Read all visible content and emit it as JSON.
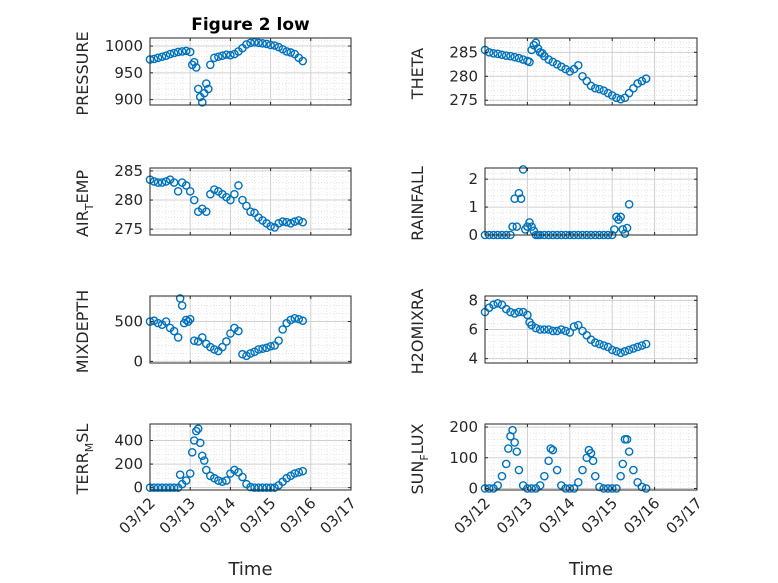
{
  "figure": {
    "title": "Figure 2 low"
  },
  "colors": {
    "marker": "#0072BD",
    "axis": "#262626",
    "grid": "#d0d0d0"
  },
  "chart_data": [
    {
      "type": "scatter",
      "title": "Figure 2 low",
      "ylabel": "PRESSURE",
      "ylim": [
        890,
        1015
      ],
      "yticks": [
        900,
        950,
        1000
      ],
      "ytick_labels": [
        "900",
        "950",
        "1000"
      ],
      "xlim": [
        0,
        5
      ],
      "grid": true,
      "x": [
        0.0,
        0.1,
        0.2,
        0.3,
        0.4,
        0.5,
        0.6,
        0.7,
        0.8,
        0.9,
        1.0,
        1.05,
        1.1,
        1.15,
        1.2,
        1.25,
        1.3,
        1.35,
        1.4,
        1.45,
        1.5,
        1.6,
        1.7,
        1.8,
        1.9,
        2.0,
        2.1,
        2.2,
        2.3,
        2.4,
        2.5,
        2.6,
        2.7,
        2.8,
        2.9,
        3.0,
        3.1,
        3.2,
        3.3,
        3.4,
        3.5,
        3.6,
        3.7,
        3.8
      ],
      "y": [
        975,
        976,
        978,
        980,
        982,
        985,
        987,
        989,
        990,
        991,
        989,
        965,
        970,
        960,
        920,
        905,
        895,
        912,
        930,
        920,
        965,
        978,
        980,
        982,
        984,
        983,
        985,
        990,
        996,
        1003,
        1006,
        1007,
        1006,
        1005,
        1004,
        1002,
        1001,
        998,
        994,
        990,
        988,
        985,
        978,
        972
      ]
    },
    {
      "type": "scatter",
      "ylabel": "THETA",
      "ylim": [
        274,
        288
      ],
      "yticks": [
        275,
        280,
        285
      ],
      "ytick_labels": [
        "275",
        "280",
        "285"
      ],
      "xlim": [
        0,
        5
      ],
      "grid": true,
      "x": [
        0.0,
        0.1,
        0.2,
        0.3,
        0.4,
        0.5,
        0.6,
        0.7,
        0.8,
        0.9,
        1.0,
        1.05,
        1.1,
        1.15,
        1.2,
        1.25,
        1.3,
        1.35,
        1.4,
        1.5,
        1.6,
        1.7,
        1.8,
        1.9,
        2.0,
        2.1,
        2.2,
        2.3,
        2.4,
        2.5,
        2.6,
        2.7,
        2.8,
        2.9,
        3.0,
        3.1,
        3.2,
        3.3,
        3.4,
        3.5,
        3.6,
        3.7,
        3.8
      ],
      "y": [
        285.5,
        285.0,
        284.8,
        284.7,
        284.5,
        284.3,
        284.2,
        284.0,
        283.8,
        283.5,
        283.2,
        283.0,
        285.5,
        286.5,
        287.0,
        285.8,
        285.0,
        284.8,
        284.2,
        283.5,
        283.0,
        282.5,
        282.0,
        281.5,
        281.0,
        281.5,
        282.3,
        280.0,
        279.0,
        278.0,
        277.5,
        277.3,
        277.0,
        276.5,
        276.0,
        275.5,
        275.2,
        275.5,
        276.5,
        277.5,
        278.5,
        279.0,
        279.5
      ]
    },
    {
      "type": "scatter",
      "ylabel": "AIR_TEMP",
      "ylim": [
        274,
        285.5
      ],
      "yticks": [
        275,
        280,
        285
      ],
      "ytick_labels": [
        "275",
        "280",
        "285"
      ],
      "xlim": [
        0,
        5
      ],
      "grid": true,
      "x": [
        0.0,
        0.1,
        0.2,
        0.3,
        0.4,
        0.5,
        0.6,
        0.7,
        0.8,
        0.9,
        1.0,
        1.1,
        1.2,
        1.3,
        1.4,
        1.5,
        1.6,
        1.7,
        1.8,
        1.9,
        2.0,
        2.1,
        2.2,
        2.3,
        2.4,
        2.5,
        2.6,
        2.7,
        2.8,
        2.9,
        3.0,
        3.1,
        3.2,
        3.3,
        3.4,
        3.5,
        3.6,
        3.7,
        3.8
      ],
      "y": [
        283.5,
        283.2,
        283.0,
        283.0,
        283.2,
        283.5,
        283.0,
        281.5,
        283.0,
        282.5,
        281.5,
        280.0,
        278.0,
        278.5,
        278.0,
        281.0,
        281.8,
        281.5,
        281.0,
        280.5,
        280.0,
        281.0,
        282.5,
        280.0,
        279.0,
        278.0,
        277.8,
        277.0,
        276.5,
        276.0,
        275.5,
        275.3,
        276.0,
        276.3,
        276.2,
        276.0,
        276.3,
        276.5,
        276.2
      ]
    },
    {
      "type": "scatter",
      "ylabel": "RAINFALL",
      "ylim": [
        0,
        2.4
      ],
      "yticks": [
        0,
        1,
        2
      ],
      "ytick_labels": [
        "0",
        "1",
        "2"
      ],
      "xlim": [
        0,
        5
      ],
      "grid": true,
      "x": [
        0.0,
        0.1,
        0.2,
        0.3,
        0.4,
        0.5,
        0.6,
        0.65,
        0.7,
        0.75,
        0.8,
        0.85,
        0.9,
        0.95,
        1.0,
        1.05,
        1.1,
        1.15,
        1.2,
        1.25,
        1.3,
        1.4,
        1.5,
        1.6,
        1.7,
        1.8,
        1.9,
        2.0,
        2.1,
        2.2,
        2.3,
        2.4,
        2.5,
        2.6,
        2.7,
        2.8,
        2.9,
        3.0,
        3.05,
        3.1,
        3.15,
        3.2,
        3.25,
        3.3,
        3.35,
        3.4
      ],
      "y": [
        0,
        0,
        0,
        0,
        0,
        0,
        0,
        0.3,
        1.3,
        0.3,
        1.5,
        1.3,
        2.35,
        0.2,
        0.3,
        0.45,
        0.3,
        0.15,
        0,
        0,
        0,
        0,
        0,
        0,
        0,
        0,
        0,
        0,
        0,
        0,
        0,
        0,
        0,
        0,
        0,
        0,
        0,
        0,
        0.2,
        0.65,
        0.55,
        0.65,
        0.2,
        0.05,
        0.25,
        1.1
      ]
    },
    {
      "type": "scatter",
      "ylabel": "MIXDEPTH",
      "ylim": [
        -20,
        820
      ],
      "yticks": [
        0,
        500
      ],
      "ytick_labels": [
        "0",
        "500"
      ],
      "xlim": [
        0,
        5
      ],
      "grid": true,
      "x": [
        0.0,
        0.1,
        0.2,
        0.3,
        0.4,
        0.5,
        0.6,
        0.7,
        0.75,
        0.8,
        0.85,
        0.9,
        0.95,
        1.0,
        1.1,
        1.2,
        1.3,
        1.4,
        1.5,
        1.6,
        1.7,
        1.8,
        1.9,
        2.0,
        2.1,
        2.2,
        2.3,
        2.4,
        2.5,
        2.6,
        2.7,
        2.8,
        2.9,
        3.0,
        3.1,
        3.2,
        3.3,
        3.4,
        3.5,
        3.6,
        3.7,
        3.8
      ],
      "y": [
        500,
        510,
        480,
        460,
        500,
        420,
        380,
        300,
        790,
        700,
        480,
        520,
        500,
        530,
        260,
        250,
        300,
        220,
        180,
        150,
        130,
        180,
        250,
        350,
        420,
        380,
        90,
        70,
        100,
        120,
        150,
        160,
        170,
        190,
        200,
        260,
        400,
        480,
        520,
        540,
        530,
        510
      ]
    },
    {
      "type": "scatter",
      "ylabel": "H2OMIXRA",
      "ylim": [
        3.7,
        8.3
      ],
      "yticks": [
        4,
        6,
        8
      ],
      "ytick_labels": [
        "4",
        "6",
        "8"
      ],
      "xlim": [
        0,
        5
      ],
      "grid": true,
      "x": [
        0.0,
        0.1,
        0.2,
        0.3,
        0.4,
        0.5,
        0.6,
        0.7,
        0.8,
        0.9,
        1.0,
        1.05,
        1.1,
        1.2,
        1.3,
        1.4,
        1.5,
        1.6,
        1.7,
        1.8,
        1.9,
        2.0,
        2.1,
        2.2,
        2.3,
        2.4,
        2.5,
        2.6,
        2.7,
        2.8,
        2.9,
        3.0,
        3.1,
        3.2,
        3.3,
        3.4,
        3.5,
        3.6,
        3.7,
        3.8
      ],
      "y": [
        7.2,
        7.5,
        7.7,
        7.8,
        7.7,
        7.4,
        7.2,
        7.1,
        7.2,
        7.2,
        7.0,
        6.5,
        6.3,
        6.1,
        6.0,
        6.0,
        6.0,
        5.9,
        5.9,
        6.0,
        5.9,
        5.8,
        6.2,
        6.3,
        5.9,
        5.6,
        5.3,
        5.1,
        5.0,
        4.9,
        4.8,
        4.6,
        4.5,
        4.4,
        4.5,
        4.6,
        4.7,
        4.8,
        4.9,
        5.0
      ]
    },
    {
      "type": "scatter",
      "ylabel": "TERR_MSL",
      "ylim": [
        -20,
        540
      ],
      "yticks": [
        0,
        200,
        400
      ],
      "ytick_labels": [
        "0",
        "200",
        "400"
      ],
      "xlim": [
        0,
        5
      ],
      "grid": true,
      "x": [
        0.0,
        0.1,
        0.2,
        0.3,
        0.4,
        0.5,
        0.6,
        0.7,
        0.75,
        0.8,
        0.9,
        1.0,
        1.05,
        1.1,
        1.15,
        1.2,
        1.25,
        1.3,
        1.35,
        1.4,
        1.5,
        1.6,
        1.7,
        1.8,
        1.9,
        2.0,
        2.1,
        2.2,
        2.3,
        2.4,
        2.5,
        2.6,
        2.7,
        2.8,
        2.9,
        3.0,
        3.1,
        3.2,
        3.3,
        3.4,
        3.5,
        3.6,
        3.7,
        3.8
      ],
      "y": [
        0,
        0,
        0,
        0,
        0,
        0,
        0,
        0,
        110,
        30,
        60,
        120,
        300,
        400,
        480,
        500,
        380,
        270,
        230,
        150,
        100,
        80,
        60,
        50,
        60,
        120,
        150,
        130,
        90,
        30,
        5,
        0,
        0,
        0,
        0,
        0,
        0,
        20,
        50,
        80,
        100,
        120,
        130,
        140
      ]
    },
    {
      "type": "scatter",
      "ylabel": "SUN_FLUX",
      "ylim": [
        -5,
        210
      ],
      "yticks": [
        0,
        100,
        200
      ],
      "ytick_labels": [
        "0",
        "100",
        "200"
      ],
      "xlim": [
        0,
        5
      ],
      "grid": true,
      "x": [
        0.0,
        0.1,
        0.2,
        0.3,
        0.4,
        0.5,
        0.55,
        0.6,
        0.65,
        0.7,
        0.75,
        0.8,
        0.9,
        1.0,
        1.1,
        1.2,
        1.3,
        1.4,
        1.5,
        1.55,
        1.6,
        1.7,
        1.8,
        1.9,
        2.0,
        2.1,
        2.2,
        2.3,
        2.4,
        2.45,
        2.5,
        2.55,
        2.6,
        2.7,
        2.8,
        2.9,
        3.0,
        3.1,
        3.2,
        3.25,
        3.3,
        3.35,
        3.4,
        3.5,
        3.6,
        3.7,
        3.8
      ],
      "y": [
        0,
        0,
        0,
        10,
        40,
        80,
        130,
        170,
        190,
        150,
        120,
        60,
        10,
        0,
        0,
        0,
        10,
        40,
        90,
        130,
        125,
        60,
        10,
        0,
        0,
        0,
        20,
        60,
        100,
        125,
        115,
        90,
        40,
        5,
        0,
        0,
        0,
        0,
        40,
        80,
        160,
        160,
        120,
        60,
        20,
        5,
        0
      ]
    }
  ],
  "x_axis": {
    "ticks": [
      0,
      1,
      2,
      3,
      4,
      5
    ],
    "tick_labels": [
      "03/12",
      "03/13",
      "03/14",
      "03/15",
      "03/16",
      "03/17"
    ],
    "label": "Time"
  }
}
